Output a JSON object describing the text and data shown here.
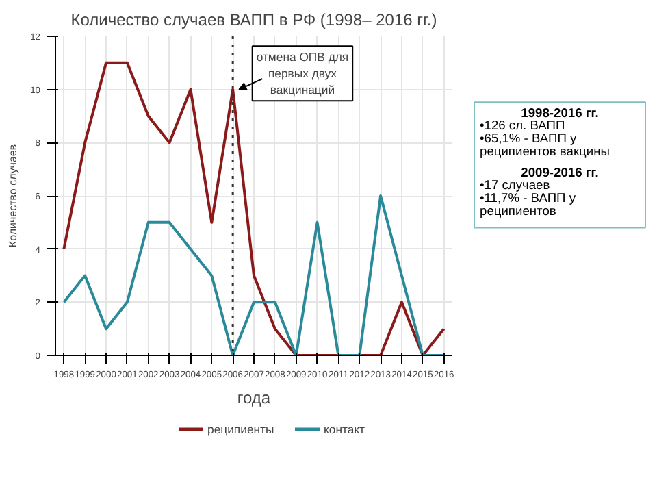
{
  "chart_data": {
    "type": "line",
    "title": "Количество случаев ВАПП в РФ (1998– 2016 гг.)",
    "xlabel": "года",
    "ylabel": "Количество случаев",
    "x": [
      1998,
      1999,
      2000,
      2001,
      2002,
      2003,
      2004,
      2005,
      2006,
      2007,
      2008,
      2009,
      2010,
      2011,
      2012,
      2013,
      2014,
      2015,
      2016
    ],
    "series": [
      {
        "name": "реципиенты",
        "color": "#8b1a1a",
        "values": [
          4,
          8,
          11,
          11,
          9,
          8,
          10,
          5,
          10,
          3,
          1,
          0,
          0,
          0,
          0,
          0,
          2,
          0,
          1
        ]
      },
      {
        "name": "контакт",
        "color": "#2a8a9a",
        "values": [
          2,
          3,
          1,
          2,
          5,
          5,
          4,
          3,
          0,
          2,
          2,
          0,
          5,
          0,
          0,
          6,
          3,
          0,
          0
        ]
      }
    ],
    "xlim": [
      1997.6,
      2016.4
    ],
    "xticks": [
      1998,
      1999,
      2000,
      2001,
      2002,
      2003,
      2004,
      2005,
      2006,
      2007,
      2008,
      2009,
      2010,
      2011,
      2012,
      2013,
      2014,
      2015,
      2016
    ],
    "ylim": [
      0,
      12
    ],
    "yticks": [
      0,
      2,
      4,
      6,
      8,
      10,
      12
    ],
    "ref_lines": [
      {
        "axis": "x",
        "value": 2006,
        "line_style": "dotted",
        "color": "#333333"
      }
    ],
    "annotations": [
      {
        "text": "отмена ОПВ для первых двух вакцинаций",
        "x": 2006,
        "y": 10
      },
      "1998-2016 гг.",
      "•126 сл. ВАПП",
      "•65,1% - ВАПП у реципиентов вакцины",
      "2009-2016 гг.",
      "•17 случаев",
      "•11,7% - ВАПП у реципиентов"
    ],
    "grid": true,
    "legend": "bottom",
    "marker": "none",
    "line_style": "solid"
  }
}
